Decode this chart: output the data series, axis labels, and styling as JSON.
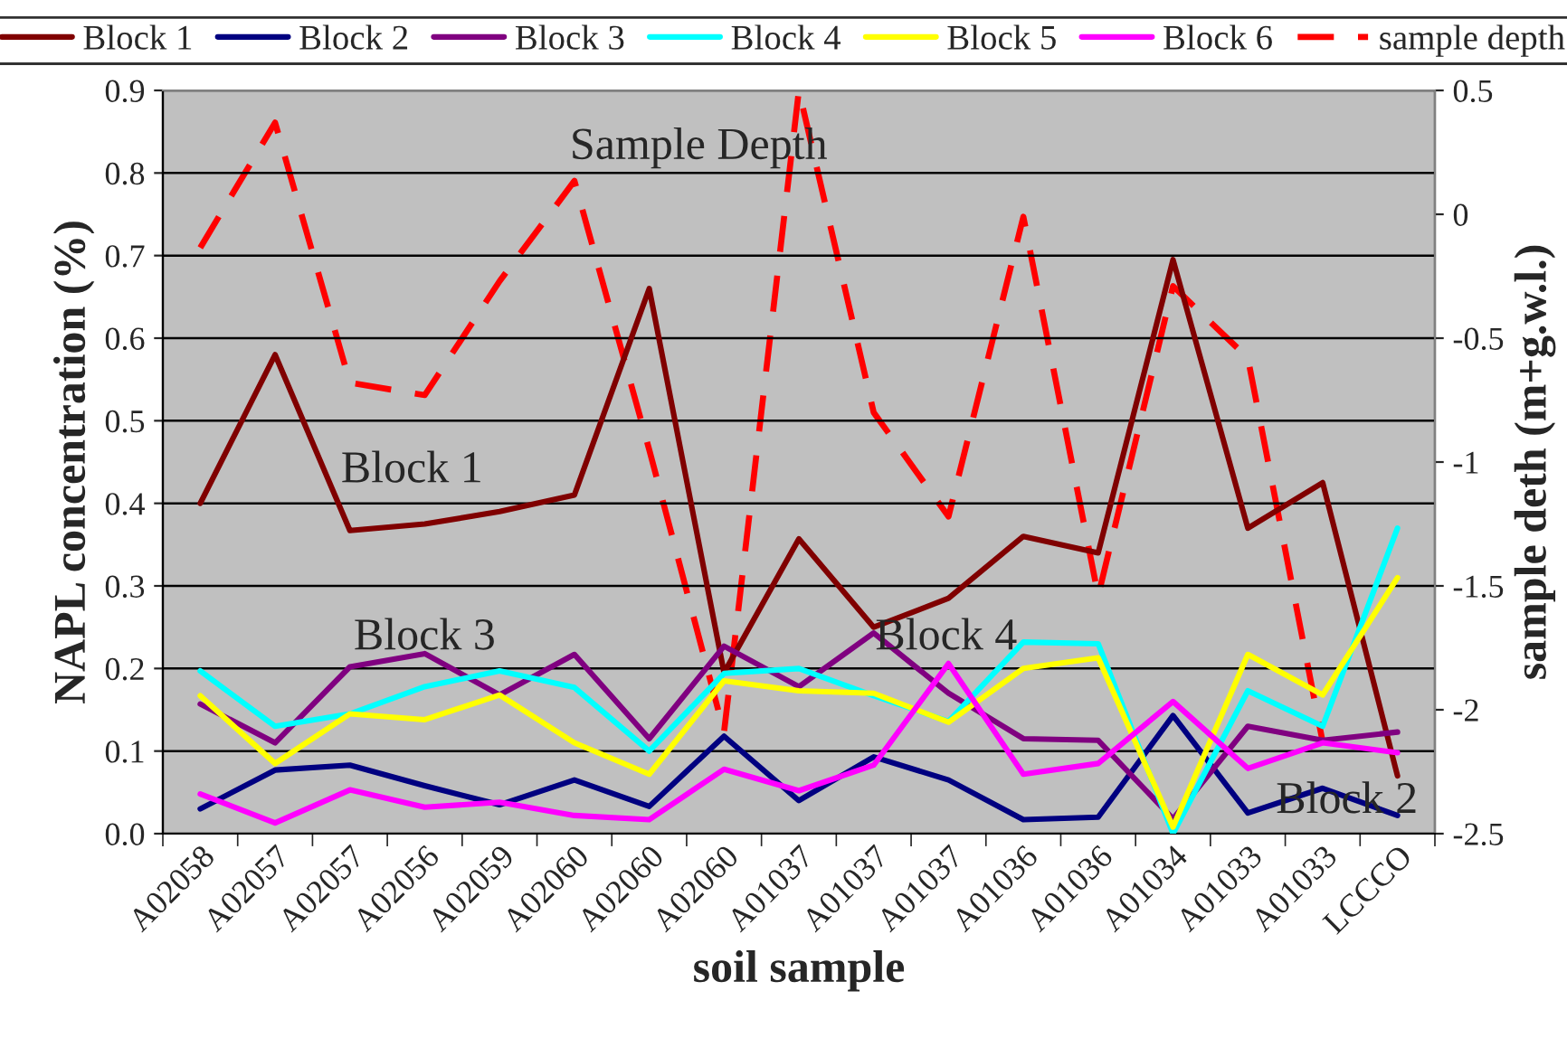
{
  "chart_data": {
    "type": "line",
    "xlabel": "soil sample",
    "ylabel": "NAPL concentration (%)",
    "y2label": "sample deth (m+g.w.l.)",
    "categories": [
      "A02058",
      "A02057",
      "A02057",
      "A02056",
      "A02059",
      "A02060",
      "A02060",
      "A02060",
      "A01037",
      "A01037",
      "A01037",
      "A01036",
      "A01036",
      "A01034",
      "A01033",
      "A01033",
      "LCCCO"
    ],
    "series": [
      {
        "name": "Block 1",
        "color": "#800000",
        "values": [
          0.4,
          0.58,
          0.367,
          0.375,
          0.39,
          0.41,
          0.66,
          0.195,
          0.357,
          0.25,
          0.285,
          0.36,
          0.34,
          0.695,
          0.37,
          0.425,
          0.07
        ]
      },
      {
        "name": "Block 2",
        "color": "#000080",
        "values": [
          0.03,
          0.077,
          0.083,
          0.058,
          0.035,
          0.065,
          0.033,
          0.118,
          0.04,
          0.093,
          0.065,
          0.017,
          0.02,
          0.143,
          0.025,
          0.055,
          0.022
        ]
      },
      {
        "name": "Block 3",
        "color": "#800080",
        "values": [
          0.157,
          0.11,
          0.202,
          0.218,
          0.168,
          0.217,
          0.115,
          0.227,
          0.178,
          0.243,
          0.17,
          0.115,
          0.113,
          0.018,
          0.13,
          0.113,
          0.123
        ]
      },
      {
        "name": "Block 4",
        "color": "#00ffff",
        "values": [
          0.197,
          0.13,
          0.145,
          0.178,
          0.197,
          0.177,
          0.1,
          0.194,
          0.2,
          0.167,
          0.136,
          0.232,
          0.23,
          0.0,
          0.173,
          0.13,
          0.37
        ]
      },
      {
        "name": "Block 5",
        "color": "#ffff00",
        "values": [
          0.167,
          0.085,
          0.145,
          0.138,
          0.168,
          0.11,
          0.072,
          0.185,
          0.173,
          0.17,
          0.135,
          0.2,
          0.213,
          0.008,
          0.217,
          0.168,
          0.31
        ]
      },
      {
        "name": "Block 6",
        "color": "#ff00ff",
        "values": [
          0.048,
          0.013,
          0.053,
          0.032,
          0.038,
          0.022,
          0.017,
          0.078,
          0.052,
          0.083,
          0.206,
          0.072,
          0.085,
          0.16,
          0.079,
          0.11,
          0.098
        ]
      },
      {
        "name": "sample depth",
        "color": "#ff0000",
        "axis": "y2",
        "line_style": "dashed",
        "values": [
          -0.135,
          0.37,
          -0.68,
          -0.73,
          -0.27,
          0.135,
          -0.95,
          -2.09,
          0.5,
          -0.8,
          -1.22,
          -0.01,
          -1.54,
          -0.29,
          -0.58,
          -2.13,
          null
        ]
      }
    ],
    "ylim": [
      0,
      0.9
    ],
    "yticks": [
      {
        "value": 0,
        "label": "0.0"
      },
      {
        "value": 0.1,
        "label": "0.1"
      },
      {
        "value": 0.2,
        "label": "0.2"
      },
      {
        "value": 0.3,
        "label": "0.3"
      },
      {
        "value": 0.4,
        "label": "0.4"
      },
      {
        "value": 0.5,
        "label": "0.5"
      },
      {
        "value": 0.6,
        "label": "0.6"
      },
      {
        "value": 0.7,
        "label": "0.7"
      },
      {
        "value": 0.8,
        "label": "0.8"
      },
      {
        "value": 0.9,
        "label": "0.9"
      }
    ],
    "y2lim": [
      -2.5,
      0.5
    ],
    "y2ticks": [
      0.5,
      0,
      -0.5,
      -1,
      -1.5,
      -2,
      -2.5
    ],
    "annotations": [
      "Sample Depth",
      "Block 1",
      "Block 3",
      "Block 4",
      "Block 2"
    ],
    "grid": "y",
    "legend": "top",
    "marker": "none",
    "line_style": "solid"
  }
}
